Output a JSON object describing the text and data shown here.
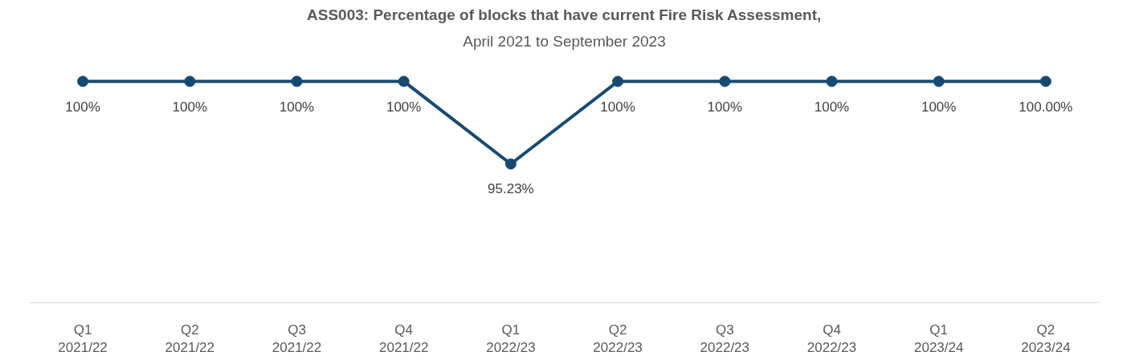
{
  "chart_data": {
    "type": "line",
    "title": "ASS003: Percentage of blocks that have current Fire Risk Assessment,",
    "subtitle": "April 2021 to September 2023",
    "categories": [
      "Q1\n2021/22",
      "Q2\n2021/22",
      "Q3\n2021/22",
      "Q4\n2021/22",
      "Q1\n2022/23",
      "Q2\n2022/23",
      "Q3\n2022/23",
      "Q4\n2022/23",
      "Q1\n2023/24",
      "Q2\n2023/24"
    ],
    "values": [
      100,
      100,
      100,
      100,
      95.23,
      100,
      100,
      100,
      100,
      100
    ],
    "value_labels": [
      "100%",
      "100%",
      "100%",
      "100%",
      "95.23%",
      "100%",
      "100%",
      "100%",
      "100%",
      "100.00%"
    ],
    "color": "#174a72",
    "marker": "circle",
    "line_style": "solid"
  }
}
